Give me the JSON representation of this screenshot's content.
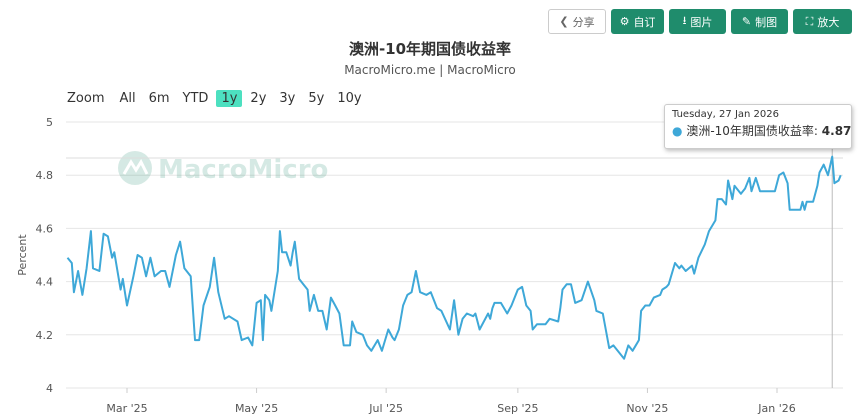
{
  "toolbar": {
    "share": "分享",
    "customize": "自订",
    "image": "图片",
    "draw": "制图",
    "enlarge": "放大"
  },
  "header": {
    "title": "澳洲-10年期国债收益率",
    "subtitle": "MacroMicro.me | MacroMicro"
  },
  "range_selector": {
    "label": "Zoom",
    "options": [
      "All",
      "6m",
      "YTD",
      "1y",
      "2y",
      "3y",
      "5y",
      "10y"
    ],
    "selected": "1y"
  },
  "watermark": "MacroMicro",
  "tooltip": {
    "date": "Tuesday, 27 Jan 2026",
    "series": "澳洲-10年期国债收益率",
    "value": "4.87"
  },
  "colors": {
    "line": "#3ea8d8",
    "button": "#1f8c6c",
    "selected_range": "#4de0c0"
  },
  "chart_data": {
    "type": "line",
    "title": "澳洲-10年期国债收益率",
    "ylabel": "Percent",
    "ylim": [
      4,
      5
    ],
    "yticks": [
      "4",
      "4.2",
      "4.4",
      "4.6",
      "4.8",
      "5"
    ],
    "xlim": [
      "2025-02-01",
      "2026-01-31"
    ],
    "xticks": [
      [
        "2025-03-01",
        "Mar '25"
      ],
      [
        "2025-05-01",
        "May '25"
      ],
      [
        "2025-07-01",
        "Jul '25"
      ],
      [
        "2025-09-01",
        "Sep '25"
      ],
      [
        "2025-11-01",
        "Nov '25"
      ],
      [
        "2026-01-01",
        "Jan '26"
      ]
    ],
    "grid": true,
    "series": [
      {
        "name": "澳洲-10年期国债收益率",
        "points": [
          [
            "2025-02-01",
            4.49
          ],
          [
            "2025-02-03",
            4.47
          ],
          [
            "2025-02-04",
            4.36
          ],
          [
            "2025-02-06",
            4.44
          ],
          [
            "2025-02-08",
            4.35
          ],
          [
            "2025-02-10",
            4.45
          ],
          [
            "2025-02-12",
            4.59
          ],
          [
            "2025-02-13",
            4.45
          ],
          [
            "2025-02-16",
            4.44
          ],
          [
            "2025-02-18",
            4.58
          ],
          [
            "2025-02-20",
            4.57
          ],
          [
            "2025-02-22",
            4.49
          ],
          [
            "2025-02-23",
            4.51
          ],
          [
            "2025-02-26",
            4.37
          ],
          [
            "2025-02-27",
            4.41
          ],
          [
            "2025-03-01",
            4.31
          ],
          [
            "2025-03-04",
            4.42
          ],
          [
            "2025-03-06",
            4.5
          ],
          [
            "2025-03-08",
            4.49
          ],
          [
            "2025-03-10",
            4.42
          ],
          [
            "2025-03-12",
            4.49
          ],
          [
            "2025-03-14",
            4.42
          ],
          [
            "2025-03-17",
            4.44
          ],
          [
            "2025-03-19",
            4.44
          ],
          [
            "2025-03-21",
            4.38
          ],
          [
            "2025-03-24",
            4.5
          ],
          [
            "2025-03-26",
            4.55
          ],
          [
            "2025-03-28",
            4.45
          ],
          [
            "2025-03-31",
            4.42
          ],
          [
            "2025-04-02",
            4.18
          ],
          [
            "2025-04-04",
            4.18
          ],
          [
            "2025-04-06",
            4.31
          ],
          [
            "2025-04-09",
            4.38
          ],
          [
            "2025-04-11",
            4.49
          ],
          [
            "2025-04-13",
            4.36
          ],
          [
            "2025-04-16",
            4.26
          ],
          [
            "2025-04-18",
            4.27
          ],
          [
            "2025-04-22",
            4.25
          ],
          [
            "2025-04-24",
            4.18
          ],
          [
            "2025-04-27",
            4.19
          ],
          [
            "2025-04-29",
            4.16
          ],
          [
            "2025-05-01",
            4.32
          ],
          [
            "2025-05-03",
            4.33
          ],
          [
            "2025-05-04",
            4.18
          ],
          [
            "2025-05-05",
            4.35
          ],
          [
            "2025-05-07",
            4.33
          ],
          [
            "2025-05-08",
            4.29
          ],
          [
            "2025-05-11",
            4.44
          ],
          [
            "2025-05-12",
            4.59
          ],
          [
            "2025-05-13",
            4.51
          ],
          [
            "2025-05-15",
            4.51
          ],
          [
            "2025-05-17",
            4.46
          ],
          [
            "2025-05-18",
            4.51
          ],
          [
            "2025-05-19",
            4.55
          ],
          [
            "2025-05-21",
            4.41
          ],
          [
            "2025-05-23",
            4.39
          ],
          [
            "2025-05-25",
            4.37
          ],
          [
            "2025-05-26",
            4.29
          ],
          [
            "2025-05-28",
            4.35
          ],
          [
            "2025-05-30",
            4.29
          ],
          [
            "2025-06-01",
            4.29
          ],
          [
            "2025-06-03",
            4.22
          ],
          [
            "2025-06-05",
            4.34
          ],
          [
            "2025-06-07",
            4.31
          ],
          [
            "2025-06-09",
            4.28
          ],
          [
            "2025-06-11",
            4.16
          ],
          [
            "2025-06-14",
            4.16
          ],
          [
            "2025-06-15",
            4.25
          ],
          [
            "2025-06-17",
            4.21
          ],
          [
            "2025-06-20",
            4.2
          ],
          [
            "2025-06-22",
            4.16
          ],
          [
            "2025-06-24",
            4.14
          ],
          [
            "2025-06-27",
            4.18
          ],
          [
            "2025-06-29",
            4.14
          ],
          [
            "2025-07-02",
            4.22
          ],
          [
            "2025-07-04",
            4.19
          ],
          [
            "2025-07-05",
            4.18
          ],
          [
            "2025-07-07",
            4.22
          ],
          [
            "2025-07-09",
            4.31
          ],
          [
            "2025-07-11",
            4.35
          ],
          [
            "2025-07-13",
            4.36
          ],
          [
            "2025-07-15",
            4.44
          ],
          [
            "2025-07-17",
            4.36
          ],
          [
            "2025-07-20",
            4.35
          ],
          [
            "2025-07-22",
            4.36
          ],
          [
            "2025-07-25",
            4.3
          ],
          [
            "2025-07-27",
            4.29
          ],
          [
            "2025-07-31",
            4.22
          ],
          [
            "2025-08-02",
            4.33
          ],
          [
            "2025-08-04",
            4.2
          ],
          [
            "2025-08-06",
            4.26
          ],
          [
            "2025-08-08",
            4.28
          ],
          [
            "2025-08-11",
            4.27
          ],
          [
            "2025-08-12",
            4.28
          ],
          [
            "2025-08-14",
            4.22
          ],
          [
            "2025-08-18",
            4.28
          ],
          [
            "2025-08-19",
            4.26
          ],
          [
            "2025-08-20",
            4.3
          ],
          [
            "2025-08-21",
            4.32
          ],
          [
            "2025-08-24",
            4.32
          ],
          [
            "2025-08-27",
            4.28
          ],
          [
            "2025-08-29",
            4.31
          ],
          [
            "2025-09-01",
            4.37
          ],
          [
            "2025-09-03",
            4.38
          ],
          [
            "2025-09-05",
            4.31
          ],
          [
            "2025-09-07",
            4.29
          ],
          [
            "2025-09-08",
            4.22
          ],
          [
            "2025-09-10",
            4.24
          ],
          [
            "2025-09-14",
            4.24
          ],
          [
            "2025-09-16",
            4.26
          ],
          [
            "2025-09-20",
            4.25
          ],
          [
            "2025-09-21",
            4.3
          ],
          [
            "2025-09-22",
            4.37
          ],
          [
            "2025-09-24",
            4.39
          ],
          [
            "2025-09-26",
            4.39
          ],
          [
            "2025-09-28",
            4.32
          ],
          [
            "2025-10-01",
            4.33
          ],
          [
            "2025-10-04",
            4.4
          ],
          [
            "2025-10-07",
            4.33
          ],
          [
            "2025-10-08",
            4.29
          ],
          [
            "2025-10-11",
            4.28
          ],
          [
            "2025-10-14",
            4.15
          ],
          [
            "2025-10-16",
            4.16
          ],
          [
            "2025-10-18",
            4.14
          ],
          [
            "2025-10-21",
            4.11
          ],
          [
            "2025-10-23",
            4.16
          ],
          [
            "2025-10-25",
            4.14
          ],
          [
            "2025-10-28",
            4.18
          ],
          [
            "2025-10-29",
            4.29
          ],
          [
            "2025-10-31",
            4.31
          ],
          [
            "2025-11-02",
            4.31
          ],
          [
            "2025-11-04",
            4.34
          ],
          [
            "2025-11-07",
            4.35
          ],
          [
            "2025-11-08",
            4.37
          ],
          [
            "2025-11-10",
            4.38
          ],
          [
            "2025-11-11",
            4.39
          ],
          [
            "2025-11-14",
            4.47
          ],
          [
            "2025-11-16",
            4.45
          ],
          [
            "2025-11-17",
            4.46
          ],
          [
            "2025-11-19",
            4.44
          ],
          [
            "2025-11-22",
            4.46
          ],
          [
            "2025-11-23",
            4.43
          ],
          [
            "2025-11-25",
            4.49
          ],
          [
            "2025-11-28",
            4.54
          ],
          [
            "2025-11-30",
            4.59
          ],
          [
            "2025-12-03",
            4.63
          ],
          [
            "2025-12-04",
            4.71
          ],
          [
            "2025-12-06",
            4.71
          ],
          [
            "2025-12-08",
            4.69
          ],
          [
            "2025-12-09",
            4.78
          ],
          [
            "2025-12-11",
            4.71
          ],
          [
            "2025-12-12",
            4.76
          ],
          [
            "2025-12-15",
            4.73
          ],
          [
            "2025-12-17",
            4.75
          ],
          [
            "2025-12-19",
            4.79
          ],
          [
            "2025-12-20",
            4.74
          ],
          [
            "2025-12-22",
            4.79
          ],
          [
            "2025-12-24",
            4.74
          ],
          [
            "2025-12-26",
            4.74
          ],
          [
            "2025-12-29",
            4.74
          ],
          [
            "2025-12-31",
            4.74
          ],
          [
            "2026-01-02",
            4.8
          ],
          [
            "2026-01-04",
            4.81
          ],
          [
            "2026-01-06",
            4.77
          ],
          [
            "2026-01-07",
            4.67
          ],
          [
            "2026-01-09",
            4.67
          ],
          [
            "2026-01-12",
            4.67
          ],
          [
            "2026-01-13",
            4.7
          ],
          [
            "2026-01-14",
            4.67
          ],
          [
            "2026-01-15",
            4.7
          ],
          [
            "2026-01-18",
            4.7
          ],
          [
            "2026-01-20",
            4.76
          ],
          [
            "2026-01-21",
            4.81
          ],
          [
            "2026-01-23",
            4.84
          ],
          [
            "2026-01-25",
            4.8
          ],
          [
            "2026-01-27",
            4.87
          ],
          [
            "2026-01-28",
            4.77
          ],
          [
            "2026-01-30",
            4.78
          ],
          [
            "2026-01-31",
            4.8
          ]
        ]
      }
    ]
  }
}
